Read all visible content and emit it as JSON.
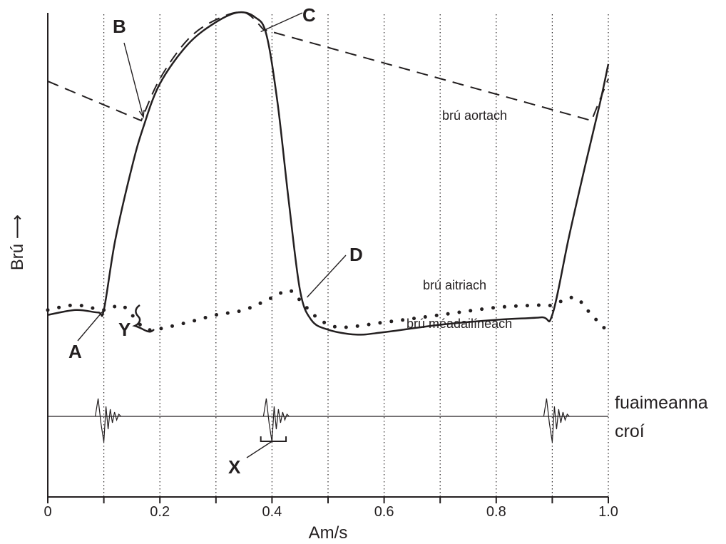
{
  "chart_data": {
    "type": "line",
    "xlabel": "Am/s",
    "ylabel": "Brú ⟶",
    "xlim": [
      0,
      1.0
    ],
    "ylim": [
      0,
      1
    ],
    "x_ticks": [
      "0",
      "0.2",
      "0.4",
      "0.6",
      "0.8",
      "1.0"
    ],
    "grid": "vertical dotted lines every 0.1 s",
    "series": [
      {
        "name": "brú aortach",
        "style": "dashed",
        "x": [
          0,
          0.1,
          0.1667,
          0.2,
          0.25,
          0.3,
          0.35,
          0.385,
          0.45,
          0.55,
          0.65,
          0.75,
          0.85,
          0.97,
          1.0
        ],
        "y": [
          0.845,
          0.797,
          0.765,
          0.85,
          0.93,
          0.97,
          0.985,
          0.95,
          0.929,
          0.897,
          0.865,
          0.834,
          0.802,
          0.765,
          0.85
        ]
      },
      {
        "name": "brú méadailíneach",
        "style": "solid",
        "x": [
          0,
          0.05,
          0.09,
          0.1,
          0.12,
          0.15,
          0.17,
          0.2,
          0.25,
          0.3,
          0.34,
          0.37,
          0.39,
          0.41,
          0.43,
          0.45,
          0.47,
          0.5,
          0.55,
          0.6,
          0.7,
          0.8,
          0.88,
          0.9,
          0.93,
          0.96,
          0.985,
          1.0
        ],
        "y": [
          0.37,
          0.38,
          0.375,
          0.38,
          0.52,
          0.67,
          0.75,
          0.84,
          0.92,
          0.965,
          0.985,
          0.975,
          0.94,
          0.8,
          0.6,
          0.42,
          0.36,
          0.34,
          0.33,
          0.335,
          0.35,
          0.36,
          0.365,
          0.37,
          0.53,
          0.68,
          0.8,
          0.88
        ]
      },
      {
        "name": "brú aitriach",
        "style": "dotted",
        "x": [
          0,
          0.05,
          0.1,
          0.13,
          0.15,
          0.17,
          0.19,
          0.25,
          0.3,
          0.35,
          0.4,
          0.43,
          0.45,
          0.48,
          0.52,
          0.6,
          0.7,
          0.8,
          0.88,
          0.9,
          0.94,
          0.97,
          1.0
        ],
        "y": [
          0.38,
          0.39,
          0.38,
          0.39,
          0.37,
          0.345,
          0.34,
          0.355,
          0.37,
          0.38,
          0.405,
          0.42,
          0.4,
          0.365,
          0.345,
          0.355,
          0.37,
          0.385,
          0.39,
          0.39,
          0.405,
          0.37,
          0.335
        ]
      }
    ],
    "heart_sounds": {
      "label_line1": "fuaimeanna",
      "label_line2": "croí",
      "burst_times": [
        0.1,
        0.4,
        0.9
      ]
    },
    "annotations": [
      {
        "letter": "A",
        "points_to": [
          0.1,
          0.38
        ]
      },
      {
        "letter": "B",
        "points_to": [
          0.1667,
          0.765
        ]
      },
      {
        "letter": "C",
        "points_to": [
          0.385,
          0.95
        ]
      },
      {
        "letter": "D",
        "points_to": [
          0.46,
          0.4
        ]
      },
      {
        "letter": "X",
        "points_to": [
          0.4,
          "heart sound bracket"
        ]
      },
      {
        "letter": "Y",
        "points_to": [
          0.17,
          "atrial pressure dip"
        ]
      }
    ]
  }
}
